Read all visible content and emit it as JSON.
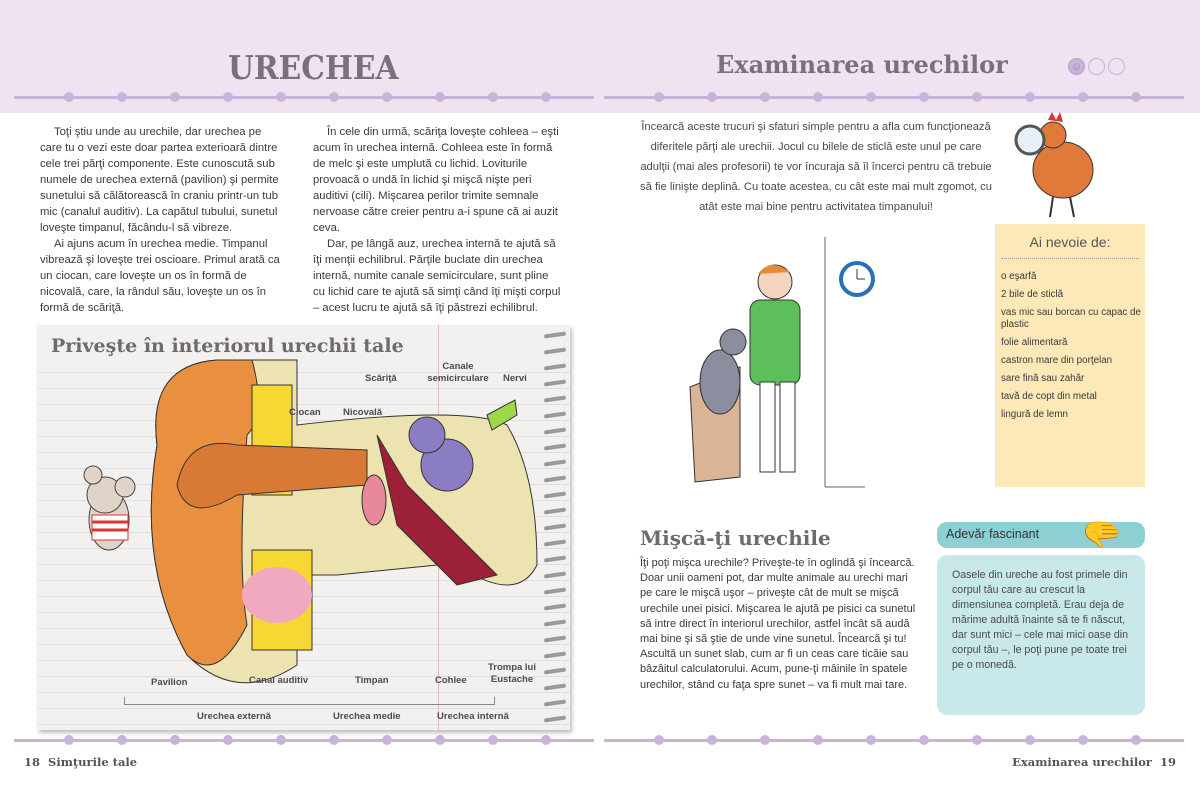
{
  "left_page": {
    "title": "URECHEA",
    "col1": [
      "Toţi ştiu unde au urechile, dar urechea pe care tu o vezi este doar partea exterioară dintre cele trei părţi componente. Este cunoscută sub numele de urechea externă (pavilion) şi permite sunetului să călătorească în craniu printr-un tub mic (canalul auditiv). La capătul tubului, sunetul loveşte timpanul, făcându-l să vibreze.",
      "Ai ajuns acum în urechea medie. Timpanul vibrează şi loveşte trei oscioare. Primul arată ca un ciocan, care loveşte un os în formă de nicovală, care, la rândul său, loveşte un os în formă de scăriţă."
    ],
    "col2": [
      "În cele din urmă, scăriţa loveşte cohleea – eşti acum în urechea internă. Cohleea este în formă de melc şi este umplută cu lichid. Loviturile provoacă o undă în lichid şi mişcă nişte peri auditivi (cili). Mişcarea perilor trimite semnale nervoase către creier pentru a-i spune că ai auzit ceva.",
      "Dar, pe lângă auz, urechea internă te ajută să îţi menţii echilibrul. Părţile buclate din urechea internă, numite canale semicirculare, sunt pline cu lichid care te ajută să simţi când îţi mişti corpul – acest lucru te ajută să îţi păstrezi echilibrul."
    ],
    "diagram": {
      "title": "Priveşte în interiorul urechii tale",
      "labels": {
        "scarita": "Scăriţă",
        "canale": "Canale semicirculare",
        "nervi": "Nervi",
        "ciocan": "Ciocan",
        "nicovala": "Nicovală",
        "pavilion": "Pavilion",
        "canal": "Canal auditiv",
        "timpan": "Timpan",
        "cohlee": "Cohlee",
        "trompa": "Trompa lui Eustache"
      },
      "sections": {
        "externa": "Urechea externă",
        "medie": "Urechea medie",
        "interna": "Urechea internă"
      }
    },
    "footer": {
      "page": "18",
      "section": "Simţurile tale"
    }
  },
  "right_page": {
    "title": "Examinarea urechilor",
    "difficulty_level": 1,
    "difficulty_max": 3,
    "intro": "Încearcă aceste trucuri şi sfaturi simple pentru a afla cum funcţionează diferitele părţi ale urechii. Jocul cu bilele de sticlă este unul pe care adulţii (mai ales profesorii) te vor încuraja să îl încerci pentru că trebuie să fie linişte deplină. Cu toate acestea, cu cât este mai mult zgomot, cu atât este mai bine pentru activitatea timpanului!",
    "needs": {
      "title": "Ai nevoie de:",
      "items": [
        "o eşarfă",
        "2 bile de sticlă",
        "vas mic sau borcan cu capac de plastic",
        "folie alimentară",
        "castron mare din porţelan",
        "sare fină sau zahăr",
        "tavă de copt din metal",
        "lingură de lemn"
      ]
    },
    "section": {
      "title": "Mişcă-ţi urechile",
      "text": "Îţi poţi mişca urechile? Priveşte-te în oglindă şi încearcă. Doar unii oameni pot, dar multe animale au urechi mari pe care le mişcă uşor – priveşte cât de mult se mişcă urechile unei pisici. Mişcarea le ajută pe pisici ca sunetul să intre direct în interiorul urechilor, astfel încât să audă mai bine şi să ştie de unde vine sunetul. Încearcă şi tu! Ascultă un sunet slab, cum ar fi un ceas care ticăie sau bâzâitul calculatorului. Acum, pune-ţi mâinile în spatele urechilor, stând cu faţa spre sunet – va fi mult mai tare."
    },
    "fact": {
      "title": "Adevăr fascinant",
      "text": "Oasele din ureche au fost primele din corpul tău care au crescut la dimensiunea completă. Erau deja de mărime adultă înainte să te fi născut, dar sunt mici – cele mai mici oase din corpul tău –, le poţi pune pe toate trei pe o monedă."
    },
    "footer": {
      "section": "Examinarea urechilor",
      "page": "19"
    }
  },
  "colors": {
    "band": "#efe3f2",
    "bones": "#c9b3da",
    "title": "#7a6f7d",
    "needs_bg": "#fde9b8",
    "fact_tab": "#8dd0d4",
    "fact_bg": "#c9e8ea"
  }
}
